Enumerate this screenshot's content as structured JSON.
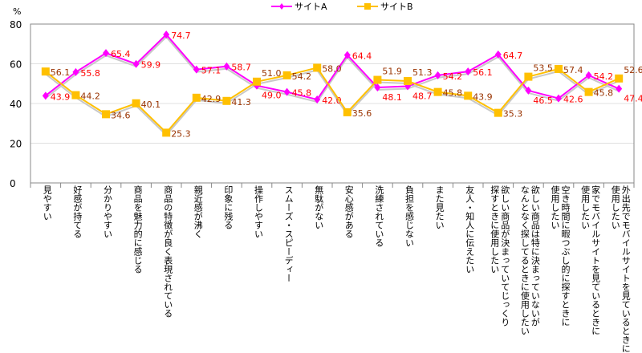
{
  "chart_data": {
    "type": "line",
    "ylabel": "%",
    "ylim": [
      0,
      80
    ],
    "yticks": [
      0,
      20,
      40,
      60,
      80
    ],
    "grid": true,
    "legend_position": "top-center",
    "categories": [
      [
        "見やすい"
      ],
      [
        "好感が持てる"
      ],
      [
        "分かりやすい"
      ],
      [
        "商品を魅力的に感じる"
      ],
      [
        "商品の特徴が良く表現されている"
      ],
      [
        "親近感が沸く"
      ],
      [
        "印象に残る"
      ],
      [
        "操作しやすい"
      ],
      [
        "スムーズ・スピーディー"
      ],
      [
        "無駄がない"
      ],
      [
        "安心感がある"
      ],
      [
        "洗練されている"
      ],
      [
        "負担を感じない"
      ],
      [
        "また見たい"
      ],
      [
        "友人・知人に伝えたい"
      ],
      [
        "欲しい商品が決まっていてじっくり",
        "探すときに使用したい"
      ],
      [
        "欲しい商品は特に決まっていないが",
        "なんとなく探してるときに使用したい"
      ],
      [
        "空き時間に暇つぶし的に探すときに",
        "使用したい"
      ],
      [
        "家でモバイルサイトを見ているときに",
        "使用したい"
      ],
      [
        "外出先でモバイルサイトを見ているときに",
        "使用したい"
      ]
    ],
    "series": [
      {
        "name": "サイトA",
        "color": "#ff00ff",
        "label_color": "#ff0000",
        "marker": "diamond",
        "values": [
          43.9,
          55.8,
          65.4,
          59.9,
          74.7,
          57.1,
          58.7,
          49.0,
          45.8,
          42.0,
          64.4,
          48.1,
          48.7,
          54.2,
          56.1,
          64.7,
          46.5,
          42.6,
          54.2,
          47.4
        ]
      },
      {
        "name": "サイトB",
        "color": "#ffc000",
        "label_color": "#993300",
        "marker": "square",
        "values": [
          56.1,
          44.2,
          34.6,
          40.1,
          25.3,
          42.9,
          41.3,
          51.0,
          54.2,
          58.0,
          35.6,
          51.9,
          51.3,
          45.8,
          43.9,
          35.3,
          53.5,
          57.4,
          45.8,
          52.6
        ]
      }
    ]
  }
}
